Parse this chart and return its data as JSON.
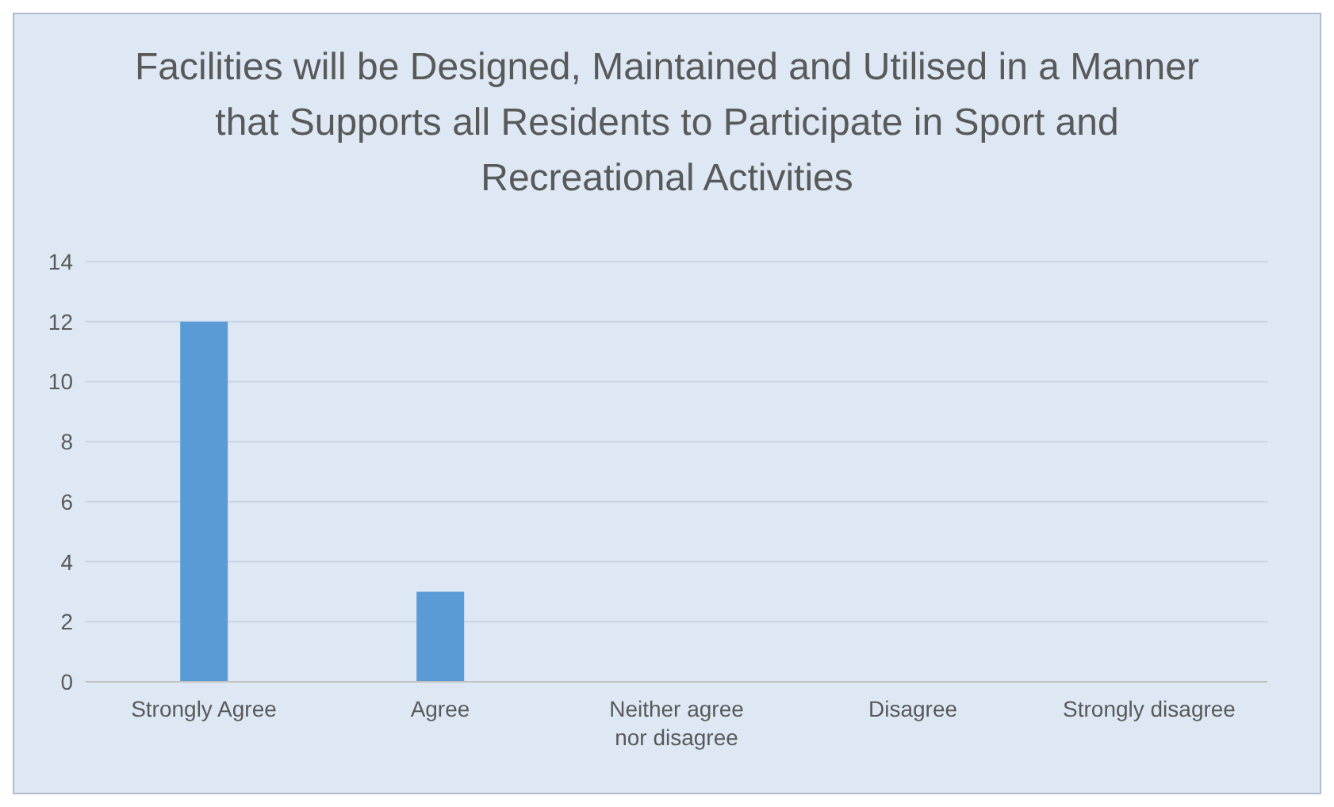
{
  "chart_data": {
    "type": "bar",
    "title": "Facilities will be Designed, Maintained and Utilised in a Manner that Supports all Residents to Participate in Sport and Recreational Activities",
    "categories": [
      "Strongly Agree",
      "Agree",
      "Neither agree nor disagree",
      "Disagree",
      "Strongly disagree"
    ],
    "values": [
      12,
      3,
      0,
      0,
      0
    ],
    "color": "#5b9bd5",
    "ylim": [
      0,
      14
    ],
    "yticks": [
      0,
      2,
      4,
      6,
      8,
      10,
      12,
      14
    ],
    "grid": "y"
  }
}
